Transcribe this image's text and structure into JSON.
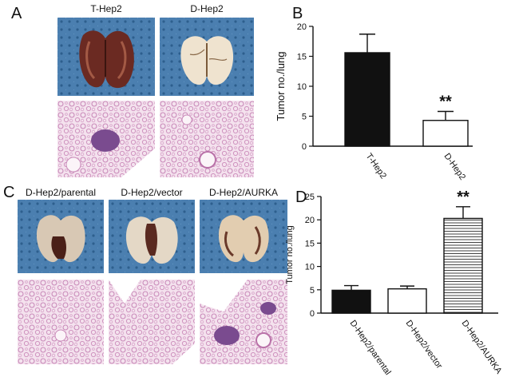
{
  "panels": {
    "a": {
      "letter": "A",
      "labels": [
        "T-Hep2",
        "D-Hep2"
      ]
    },
    "b": {
      "letter": "B"
    },
    "c": {
      "letter": "C",
      "labels": [
        "D-Hep2/parental",
        "D-Hep2/vector",
        "D-Hep2/AURKA"
      ]
    },
    "d": {
      "letter": "D"
    }
  },
  "colors": {
    "cloth": "#4a7fae",
    "tissue_bg": "#f2dcea",
    "tissue_stain": "#c77db3",
    "tumor": "#7a4b8f"
  },
  "chart_data": [
    {
      "type": "bar",
      "panel": "B",
      "categories": [
        "T-Hep2",
        "D-Hep2"
      ],
      "values": [
        15.6,
        4.3
      ],
      "errors": [
        3.1,
        1.5
      ],
      "fills": [
        "solid-black",
        "white"
      ],
      "ylabel": "Tumor no./lung",
      "ylim": [
        0,
        20
      ],
      "yticks": [
        0,
        5,
        10,
        15,
        20
      ],
      "significance": [
        {
          "index": 1,
          "text": "**"
        }
      ]
    },
    {
      "type": "bar",
      "panel": "D",
      "categories": [
        "D-Hep2/parental",
        "D-Hep2/vector",
        "D-Hep2/AURKA"
      ],
      "values": [
        4.9,
        5.2,
        20.3
      ],
      "errors": [
        1.0,
        0.6,
        2.5
      ],
      "fills": [
        "solid-black",
        "white",
        "horizontal-stripes"
      ],
      "ylabel": "Tumor no./lung",
      "ylim": [
        0,
        25
      ],
      "yticks": [
        0,
        5,
        10,
        15,
        20,
        25
      ],
      "significance": [
        {
          "index": 2,
          "text": "**"
        }
      ]
    }
  ]
}
